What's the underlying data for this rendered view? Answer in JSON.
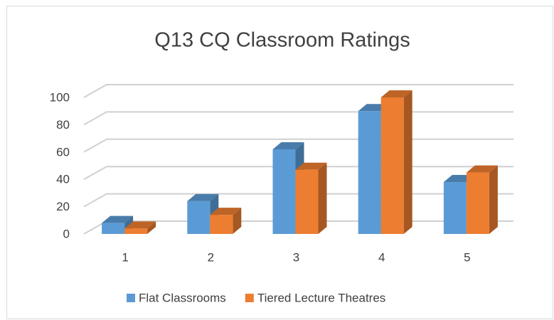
{
  "chart_data": {
    "type": "bar3d",
    "title": "Q13 CQ Classroom Ratings",
    "categories": [
      "1",
      "2",
      "3",
      "4",
      "5"
    ],
    "series": [
      {
        "name": "Flat Classrooms",
        "color": "#5b9bd5",
        "values": [
          8,
          24,
          62,
          90,
          38
        ]
      },
      {
        "name": "Tiered Lecture Theatres",
        "color": "#ed7d31",
        "values": [
          4,
          14,
          47,
          100,
          45
        ]
      }
    ],
    "ylim": [
      0,
      100
    ],
    "yticks": [
      0,
      20,
      40,
      60,
      80,
      100
    ],
    "grid": true,
    "legend": "bottom"
  }
}
